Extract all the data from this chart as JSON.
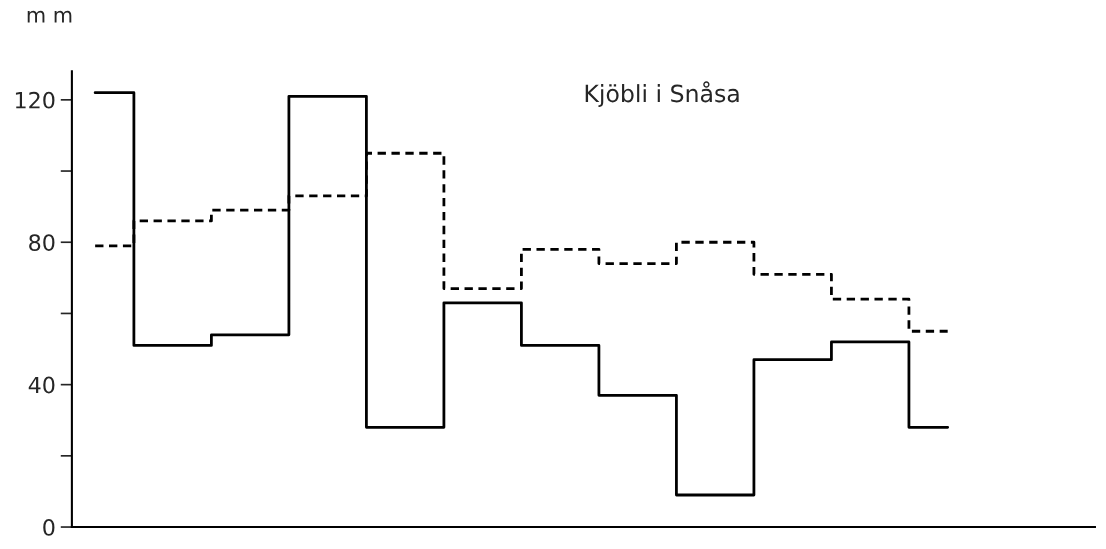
{
  "chart_data": {
    "type": "step",
    "title": "Kjöbli i Snåsa",
    "ylabel": "m m",
    "categories": [
      null,
      null,
      null,
      null,
      null,
      null,
      null,
      null,
      null,
      null,
      null,
      null
    ],
    "series": [
      {
        "color": "#000000",
        "line_style": "solid",
        "values": [
          122,
          51,
          54,
          121,
          28,
          63,
          51,
          37,
          9,
          47,
          52,
          28
        ]
      },
      {
        "color": "#000000",
        "line_style": "dashed",
        "values": [
          79,
          86,
          89,
          93,
          105,
          67,
          78,
          74,
          80,
          71,
          64,
          55
        ]
      }
    ],
    "ylim": [
      0,
      128
    ],
    "yticks": [
      0,
      {
        "value": 20,
        "label": null
      },
      40,
      {
        "value": 60,
        "label": null
      },
      80,
      {
        "value": 100,
        "label": null
      },
      120
    ],
    "grid": false,
    "legend": false,
    "tick_labels": "y"
  }
}
